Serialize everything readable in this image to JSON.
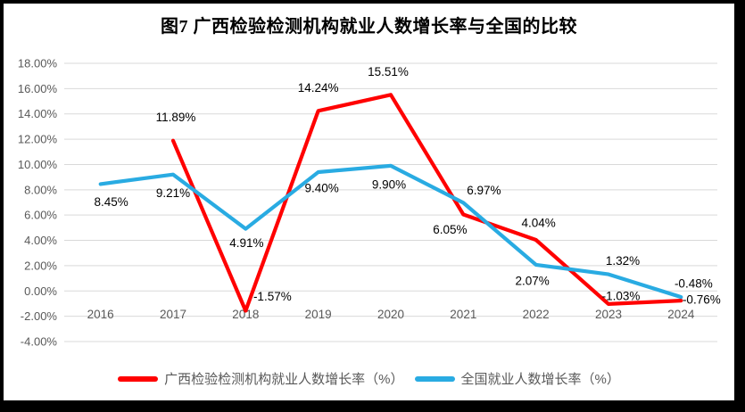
{
  "background_color": "#000000",
  "card_color": "#FFFFFF",
  "title": "图7 广西检验检测机构就业人数增长率与全国的比较",
  "chart_data": {
    "type": "line",
    "title": "图7 广西检验检测机构就业人数增长率与全国的比较",
    "xlabel": "",
    "ylabel": "",
    "categories": [
      "2016",
      "2017",
      "2018",
      "2019",
      "2020",
      "2021",
      "2022",
      "2023",
      "2024"
    ],
    "series": [
      {
        "name": "广西检验检测机构就业人数增长率（%）",
        "color": "#FF0000",
        "values": [
          null,
          11.89,
          -1.57,
          14.24,
          15.51,
          6.05,
          4.04,
          -1.03,
          -0.76
        ],
        "data_labels": [
          "",
          "11.89%",
          "-1.57%",
          "14.24%",
          "15.51%",
          "6.05%",
          "4.04%",
          "-1.03%",
          "-0.76%"
        ],
        "label_offsets": [
          [
            0,
            0
          ],
          [
            3,
            -26
          ],
          [
            30,
            -16
          ],
          [
            0,
            -26
          ],
          [
            -3,
            -26
          ],
          [
            -15,
            17
          ],
          [
            3,
            -19
          ],
          [
            14,
            -9
          ],
          [
            23,
            -1
          ]
        ]
      },
      {
        "name": "全国就业人数增长率（%）",
        "color": "#29ABE2",
        "values": [
          8.45,
          9.21,
          4.91,
          9.4,
          9.9,
          6.97,
          2.07,
          1.32,
          -0.48
        ],
        "data_labels": [
          "8.45%",
          "9.21%",
          "4.91%",
          "9.40%",
          "9.90%",
          "6.97%",
          "2.07%",
          "1.32%",
          "-0.48%"
        ],
        "label_offsets": [
          [
            12,
            20
          ],
          [
            0,
            21
          ],
          [
            1,
            16
          ],
          [
            4,
            18
          ],
          [
            -2,
            21
          ],
          [
            23,
            -14
          ],
          [
            -4,
            18
          ],
          [
            16,
            -15
          ],
          [
            14,
            -15
          ]
        ]
      }
    ],
    "ylim": [
      -4,
      18
    ],
    "ytick_step": 2,
    "ytick_labels": [
      "18.00%",
      "16.00%",
      "14.00%",
      "12.00%",
      "10.00%",
      "8.00%",
      "6.00%",
      "4.00%",
      "2.00%",
      "0.00%",
      "-2.00%",
      "-4.00%"
    ],
    "grid": true,
    "legend_position": "bottom",
    "colors": {
      "grid": "#D9D9D9",
      "axis_text": "#595959",
      "data_label_text": "#000000",
      "legend_text": "#595959"
    }
  },
  "legend": {
    "items": [
      {
        "label": "广西检验检测机构就业人数增长率（%）",
        "color": "#FF0000"
      },
      {
        "label": "全国就业人数增长率（%）",
        "color": "#29ABE2"
      }
    ]
  }
}
